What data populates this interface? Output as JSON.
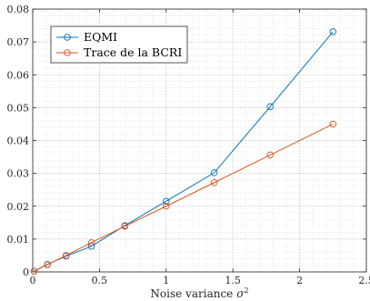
{
  "chart_data": {
    "type": "line",
    "xlabel": "Noise variance",
    "xlabel_symbol": "σ",
    "xlabel_superscript": "2",
    "ylabel": "",
    "title": "",
    "xlim": [
      0,
      2.5
    ],
    "ylim": [
      0,
      0.08
    ],
    "xticks": [
      0,
      0.5,
      1,
      1.5,
      2,
      2.5
    ],
    "xtick_labels": [
      "0",
      "0.5",
      "1",
      "1.5",
      "2",
      "2.5"
    ],
    "yticks": [
      0,
      0.01,
      0.02,
      0.03,
      0.04,
      0.05,
      0.06,
      0.07,
      0.08
    ],
    "ytick_labels": [
      "0",
      "0.01",
      "0.02",
      "0.03",
      "0.04",
      "0.05",
      "0.06",
      "0.07",
      "0.08"
    ],
    "grid": true,
    "minor_grid": true,
    "legend_position": "top-left",
    "marker": "circle",
    "series": [
      {
        "name": "EQMI",
        "color": "#0072BD",
        "x": [
          0.01,
          0.11,
          0.25,
          0.44,
          0.69,
          1.0,
          1.36,
          1.78,
          2.25
        ],
        "y": [
          0.0002,
          0.0023,
          0.0048,
          0.0078,
          0.0141,
          0.0215,
          0.0302,
          0.0503,
          0.0731
        ]
      },
      {
        "name": "Trace de la BCRI",
        "color": "#D95319",
        "x": [
          0.01,
          0.11,
          0.25,
          0.44,
          0.69,
          1.0,
          1.36,
          1.78,
          2.25
        ],
        "y": [
          0.0002,
          0.0022,
          0.005,
          0.0089,
          0.0139,
          0.02,
          0.0272,
          0.0356,
          0.045
        ]
      }
    ]
  }
}
